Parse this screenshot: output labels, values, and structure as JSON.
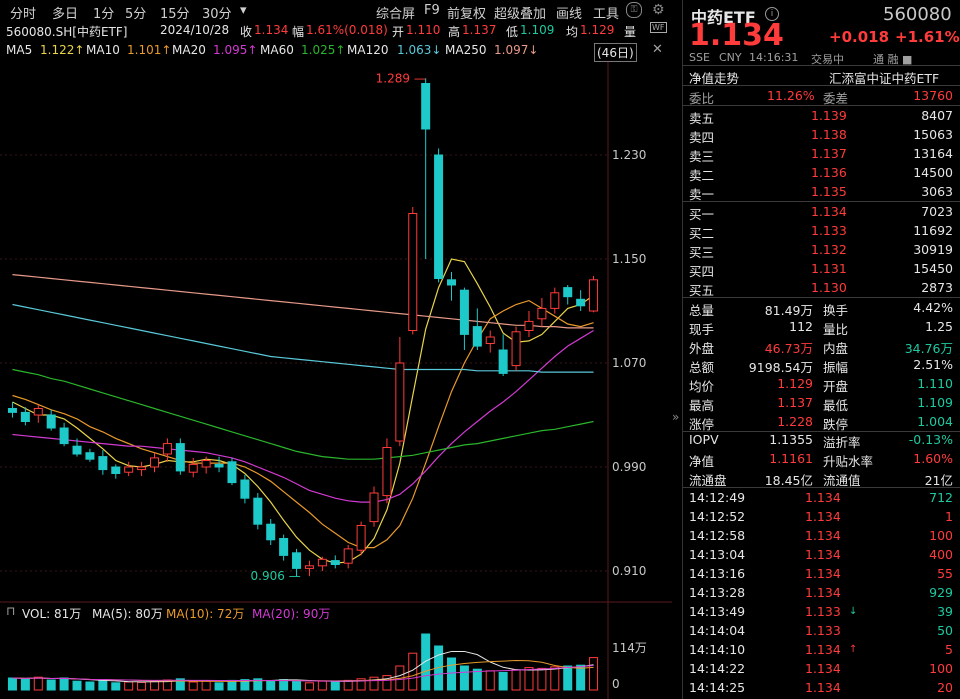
{
  "toolbar": {
    "periods": [
      "分时",
      "多日",
      "1分",
      "5分",
      "15分",
      "30分"
    ],
    "period_dropdown": "▾",
    "actions": [
      "综合屏",
      "F9",
      "前复权",
      "超级叠加",
      "画线",
      "工具"
    ]
  },
  "info": {
    "code_name": "560080.SH[中药ETF]",
    "date": "2024/10/28",
    "close_label": "收",
    "close": "1.134",
    "change_label": "幅",
    "change": "1.61%(0.018)",
    "open_label": "开",
    "open": "1.110",
    "high_label": "高",
    "high": "1.137",
    "low_label": "低",
    "low": "1.109",
    "avg_label": "均",
    "avg": "1.129",
    "vol_label": "量"
  },
  "ma_line": {
    "ma5": "MA5",
    "ma5_val": "1.122↑",
    "ma10": "MA10",
    "ma10_val": "1.101↑",
    "ma20": "MA20",
    "ma20_val": "1.095↑",
    "ma60": "MA60",
    "ma60_val": "1.025↑",
    "ma120": "MA120",
    "ma120_val": "1.063↓",
    "ma250": "MA250",
    "ma250_val": "1.097↓",
    "days": "(46日)"
  },
  "chart_data": {
    "type": "candlestick",
    "y_ticks": [
      "1.230",
      "1.150",
      "1.070",
      "0.990",
      "0.910"
    ],
    "y_range": [
      0.89,
      1.3
    ],
    "annotations": {
      "high": "1.289",
      "low": "0.906"
    },
    "candles": [
      {
        "o": 1.035,
        "h": 1.04,
        "l": 1.028,
        "c": 1.032
      },
      {
        "o": 1.032,
        "h": 1.036,
        "l": 1.022,
        "c": 1.025
      },
      {
        "o": 1.03,
        "h": 1.038,
        "l": 1.024,
        "c": 1.035
      },
      {
        "o": 1.03,
        "h": 1.034,
        "l": 1.018,
        "c": 1.02
      },
      {
        "o": 1.02,
        "h": 1.024,
        "l": 1.006,
        "c": 1.008
      },
      {
        "o": 1.006,
        "h": 1.012,
        "l": 0.998,
        "c": 1.0
      },
      {
        "o": 1.001,
        "h": 1.004,
        "l": 0.994,
        "c": 0.996
      },
      {
        "o": 0.998,
        "h": 1.003,
        "l": 0.984,
        "c": 0.988
      },
      {
        "o": 0.99,
        "h": 0.992,
        "l": 0.981,
        "c": 0.985
      },
      {
        "o": 0.986,
        "h": 0.994,
        "l": 0.983,
        "c": 0.99
      },
      {
        "o": 0.988,
        "h": 0.994,
        "l": 0.983,
        "c": 0.99
      },
      {
        "o": 0.99,
        "h": 1.001,
        "l": 0.986,
        "c": 0.997
      },
      {
        "o": 1.0,
        "h": 1.012,
        "l": 0.994,
        "c": 1.008
      },
      {
        "o": 1.008,
        "h": 1.012,
        "l": 0.984,
        "c": 0.987
      },
      {
        "o": 0.986,
        "h": 0.997,
        "l": 0.982,
        "c": 0.992
      },
      {
        "o": 0.99,
        "h": 0.998,
        "l": 0.985,
        "c": 0.995
      },
      {
        "o": 0.992,
        "h": 0.998,
        "l": 0.986,
        "c": 0.99
      },
      {
        "o": 0.994,
        "h": 0.997,
        "l": 0.976,
        "c": 0.978
      },
      {
        "o": 0.98,
        "h": 0.984,
        "l": 0.962,
        "c": 0.966
      },
      {
        "o": 0.966,
        "h": 0.97,
        "l": 0.942,
        "c": 0.946
      },
      {
        "o": 0.946,
        "h": 0.95,
        "l": 0.93,
        "c": 0.934
      },
      {
        "o": 0.935,
        "h": 0.938,
        "l": 0.918,
        "c": 0.922
      },
      {
        "o": 0.924,
        "h": 0.927,
        "l": 0.906,
        "c": 0.912
      },
      {
        "o": 0.912,
        "h": 0.918,
        "l": 0.906,
        "c": 0.914
      },
      {
        "o": 0.914,
        "h": 0.921,
        "l": 0.91,
        "c": 0.919
      },
      {
        "o": 0.918,
        "h": 0.922,
        "l": 0.912,
        "c": 0.915
      },
      {
        "o": 0.916,
        "h": 0.93,
        "l": 0.912,
        "c": 0.927
      },
      {
        "o": 0.926,
        "h": 0.948,
        "l": 0.922,
        "c": 0.945
      },
      {
        "o": 0.948,
        "h": 0.975,
        "l": 0.944,
        "c": 0.97
      },
      {
        "o": 0.968,
        "h": 1.012,
        "l": 0.962,
        "c": 1.005
      },
      {
        "o": 1.01,
        "h": 1.09,
        "l": 1.006,
        "c": 1.07
      },
      {
        "o": 1.095,
        "h": 1.19,
        "l": 1.092,
        "c": 1.185
      },
      {
        "o": 1.285,
        "h": 1.289,
        "l": 1.15,
        "c": 1.25
      },
      {
        "o": 1.23,
        "h": 1.235,
        "l": 1.132,
        "c": 1.135
      },
      {
        "o": 1.134,
        "h": 1.14,
        "l": 1.118,
        "c": 1.13
      },
      {
        "o": 1.126,
        "h": 1.128,
        "l": 1.08,
        "c": 1.092
      },
      {
        "o": 1.098,
        "h": 1.112,
        "l": 1.08,
        "c": 1.083
      },
      {
        "o": 1.085,
        "h": 1.095,
        "l": 1.078,
        "c": 1.09
      },
      {
        "o": 1.08,
        "h": 1.092,
        "l": 1.06,
        "c": 1.062
      },
      {
        "o": 1.068,
        "h": 1.098,
        "l": 1.064,
        "c": 1.094
      },
      {
        "o": 1.095,
        "h": 1.11,
        "l": 1.09,
        "c": 1.102
      },
      {
        "o": 1.104,
        "h": 1.12,
        "l": 1.098,
        "c": 1.112
      },
      {
        "o": 1.112,
        "h": 1.128,
        "l": 1.108,
        "c": 1.124
      },
      {
        "o": 1.128,
        "h": 1.13,
        "l": 1.115,
        "c": 1.121
      },
      {
        "o": 1.119,
        "h": 1.126,
        "l": 1.11,
        "c": 1.114
      },
      {
        "o": 1.11,
        "h": 1.137,
        "l": 1.109,
        "c": 1.134
      }
    ],
    "ma_series": [
      {
        "name": "MA5",
        "color": "#e8d44a",
        "values": [
          1.04,
          1.035,
          1.03,
          1.03,
          1.027,
          1.02,
          1.012,
          1.004,
          0.995,
          0.991,
          0.99,
          0.992,
          0.995,
          0.994,
          0.994,
          0.996,
          0.995,
          0.992,
          0.985,
          0.975,
          0.963,
          0.949,
          0.936,
          0.926,
          0.919,
          0.916,
          0.917,
          0.923,
          0.935,
          0.957,
          0.993,
          1.045,
          1.096,
          1.128,
          1.15,
          1.148,
          1.131,
          1.113,
          1.093,
          1.086,
          1.087,
          1.092,
          1.102,
          1.112,
          1.115,
          1.122
        ]
      },
      {
        "name": "MA10",
        "color": "#e89a2a",
        "values": [
          1.045,
          1.042,
          1.038,
          1.034,
          1.031,
          1.027,
          1.021,
          1.017,
          1.012,
          1.008,
          1.004,
          1.001,
          0.998,
          0.995,
          0.993,
          0.993,
          0.993,
          0.993,
          0.99,
          0.985,
          0.979,
          0.971,
          0.963,
          0.955,
          0.946,
          0.939,
          0.932,
          0.928,
          0.928,
          0.934,
          0.945,
          0.966,
          0.993,
          1.021,
          1.048,
          1.07,
          1.088,
          1.104,
          1.11,
          1.115,
          1.118,
          1.112,
          1.106,
          1.1,
          1.098,
          1.101
        ]
      },
      {
        "name": "MA20",
        "color": "#d23ad2",
        "values": [
          1.015,
          1.014,
          1.013,
          1.012,
          1.011,
          1.01,
          1.009,
          1.008,
          1.007,
          1.006,
          1.006,
          1.005,
          1.004,
          1.003,
          1.002,
          1.001,
          0.999,
          0.997,
          0.994,
          0.99,
          0.986,
          0.982,
          0.977,
          0.972,
          0.969,
          0.966,
          0.964,
          0.963,
          0.963,
          0.965,
          0.969,
          0.977,
          0.987,
          0.998,
          1.008,
          1.017,
          1.025,
          1.033,
          1.04,
          1.048,
          1.057,
          1.066,
          1.075,
          1.083,
          1.089,
          1.095
        ]
      },
      {
        "name": "MA60",
        "color": "#2bb52b",
        "values": [
          1.065,
          1.063,
          1.061,
          1.058,
          1.056,
          1.053,
          1.05,
          1.047,
          1.044,
          1.041,
          1.038,
          1.035,
          1.032,
          1.029,
          1.026,
          1.023,
          1.02,
          1.017,
          1.014,
          1.011,
          1.008,
          1.005,
          1.002,
          1.0,
          0.998,
          0.997,
          0.996,
          0.996,
          0.996,
          0.997,
          0.998,
          0.999,
          1.001,
          1.003,
          1.005,
          1.007,
          1.008,
          1.01,
          1.012,
          1.014,
          1.016,
          1.018,
          1.019,
          1.021,
          1.023,
          1.025
        ]
      },
      {
        "name": "MA120",
        "color": "#5ac8d8",
        "values": [
          1.115,
          1.113,
          1.111,
          1.109,
          1.107,
          1.105,
          1.103,
          1.101,
          1.099,
          1.097,
          1.095,
          1.093,
          1.091,
          1.089,
          1.087,
          1.085,
          1.083,
          1.081,
          1.079,
          1.077,
          1.075,
          1.074,
          1.073,
          1.072,
          1.071,
          1.07,
          1.069,
          1.068,
          1.067,
          1.066,
          1.065,
          1.065,
          1.065,
          1.065,
          1.065,
          1.065,
          1.064,
          1.064,
          1.064,
          1.064,
          1.064,
          1.063,
          1.063,
          1.063,
          1.063,
          1.063
        ]
      },
      {
        "name": "MA250",
        "color": "#e89a8a",
        "values": [
          1.138,
          1.137,
          1.136,
          1.135,
          1.134,
          1.133,
          1.132,
          1.131,
          1.13,
          1.129,
          1.128,
          1.127,
          1.126,
          1.125,
          1.124,
          1.123,
          1.122,
          1.121,
          1.12,
          1.119,
          1.118,
          1.117,
          1.116,
          1.115,
          1.114,
          1.113,
          1.112,
          1.111,
          1.11,
          1.109,
          1.108,
          1.107,
          1.106,
          1.105,
          1.104,
          1.103,
          1.102,
          1.101,
          1.1,
          1.099,
          1.099,
          1.098,
          1.098,
          1.097,
          1.097,
          1.097
        ]
      }
    ],
    "volume": {
      "label_vol": "VOL: 81万",
      "label_ma5": "MA(5): 80万",
      "label_ma10": "MA(10): 72万",
      "label_ma20": "MA(20): 90万",
      "ticks": [
        "114万",
        "0"
      ],
      "values": [
        30,
        28,
        32,
        25,
        30,
        22,
        20,
        24,
        18,
        20,
        19,
        22,
        25,
        28,
        20,
        22,
        18,
        24,
        26,
        28,
        22,
        26,
        24,
        18,
        22,
        20,
        24,
        28,
        32,
        36,
        60,
        92,
        140,
        110,
        80,
        60,
        52,
        48,
        44,
        50,
        56,
        54,
        58,
        60,
        62,
        81
      ]
    }
  },
  "right": {
    "title": "中药ETF",
    "code": "560080",
    "price": "1.134",
    "change": "+0.018",
    "pct": "+1.61%",
    "meta": [
      "SSE",
      "CNY",
      "14:16:31",
      "交易中"
    ],
    "meta_right": "通 融 ■",
    "nav_label": "净值走势",
    "tracker": "汇添富中证中药ETF",
    "weibi_label": "委比",
    "weibi": "11.26%",
    "weicha_label": "委差",
    "weicha": "13760",
    "asks": [
      {
        "label": "卖五",
        "price": "1.139",
        "vol": "8407"
      },
      {
        "label": "卖四",
        "price": "1.138",
        "vol": "15063"
      },
      {
        "label": "卖三",
        "price": "1.137",
        "vol": "13164"
      },
      {
        "label": "卖二",
        "price": "1.136",
        "vol": "14500"
      },
      {
        "label": "卖一",
        "price": "1.135",
        "vol": "3063"
      }
    ],
    "bids": [
      {
        "label": "买一",
        "price": "1.134",
        "vol": "7023"
      },
      {
        "label": "买二",
        "price": "1.133",
        "vol": "11692"
      },
      {
        "label": "买三",
        "price": "1.132",
        "vol": "30919"
      },
      {
        "label": "买四",
        "price": "1.131",
        "vol": "15450"
      },
      {
        "label": "买五",
        "price": "1.130",
        "vol": "2873"
      }
    ],
    "stats": [
      {
        "l1": "总量",
        "v1": "81.49万",
        "c1": "white",
        "l2": "换手",
        "v2": "4.42%",
        "c2": "white"
      },
      {
        "l1": "现手",
        "v1": "112",
        "c1": "white",
        "l2": "量比",
        "v2": "1.25",
        "c2": "white"
      },
      {
        "l1": "外盘",
        "v1": "46.73万",
        "c1": "red",
        "l2": "内盘",
        "v2": "34.76万",
        "c2": "green"
      },
      {
        "l1": "总额",
        "v1": "9198.54万",
        "c1": "white",
        "l2": "振幅",
        "v2": "2.51%",
        "c2": "white"
      },
      {
        "l1": "均价",
        "v1": "1.129",
        "c1": "red",
        "l2": "开盘",
        "v2": "1.110",
        "c2": "green"
      },
      {
        "l1": "最高",
        "v1": "1.137",
        "c1": "red",
        "l2": "最低",
        "v2": "1.109",
        "c2": "green"
      },
      {
        "l1": "涨停",
        "v1": "1.228",
        "c1": "red",
        "l2": "跌停",
        "v2": "1.004",
        "c2": "green"
      }
    ],
    "stats2": [
      {
        "l1": "IOPV",
        "v1": "1.1355",
        "c1": "white",
        "l2": "溢折率",
        "v2": "-0.13%",
        "c2": "green"
      },
      {
        "l1": "净值",
        "v1": "1.1161",
        "c1": "red",
        "l2": "升贴水率",
        "v2": "1.60%",
        "c2": "red"
      },
      {
        "l1": "流通盘",
        "v1": "18.45亿",
        "c1": "white",
        "l2": "流通值",
        "v2": "21亿",
        "c2": "white"
      }
    ],
    "ticks": [
      {
        "t": "14:12:49",
        "p": "1.134",
        "pc": "red",
        "a": "",
        "ac": "",
        "v": "712",
        "vc": "green"
      },
      {
        "t": "14:12:52",
        "p": "1.134",
        "pc": "red",
        "a": "",
        "ac": "",
        "v": "1",
        "vc": "red"
      },
      {
        "t": "14:12:58",
        "p": "1.134",
        "pc": "red",
        "a": "",
        "ac": "",
        "v": "100",
        "vc": "red"
      },
      {
        "t": "14:13:04",
        "p": "1.134",
        "pc": "red",
        "a": "",
        "ac": "",
        "v": "400",
        "vc": "red"
      },
      {
        "t": "14:13:16",
        "p": "1.134",
        "pc": "red",
        "a": "",
        "ac": "",
        "v": "55",
        "vc": "red"
      },
      {
        "t": "14:13:28",
        "p": "1.134",
        "pc": "red",
        "a": "",
        "ac": "",
        "v": "929",
        "vc": "green"
      },
      {
        "t": "14:13:49",
        "p": "1.133",
        "pc": "red",
        "a": "↓",
        "ac": "green",
        "v": "39",
        "vc": "green"
      },
      {
        "t": "14:14:04",
        "p": "1.133",
        "pc": "red",
        "a": "",
        "ac": "",
        "v": "50",
        "vc": "green"
      },
      {
        "t": "14:14:10",
        "p": "1.134",
        "pc": "red",
        "a": "↑",
        "ac": "red",
        "v": "5",
        "vc": "red"
      },
      {
        "t": "14:14:22",
        "p": "1.134",
        "pc": "red",
        "a": "",
        "ac": "",
        "v": "100",
        "vc": "red"
      },
      {
        "t": "14:14:25",
        "p": "1.134",
        "pc": "red",
        "a": "",
        "ac": "",
        "v": "20",
        "vc": "red"
      }
    ]
  },
  "colors": {
    "up": "#ff3b3b",
    "down": "#1ec9c9",
    "grid": "#3a1414",
    "bg": "#000000"
  }
}
